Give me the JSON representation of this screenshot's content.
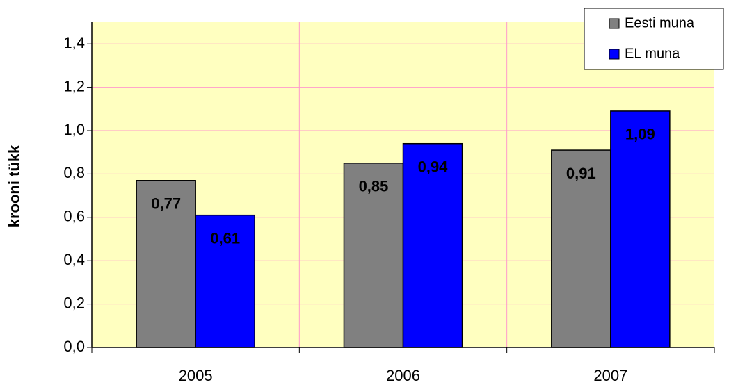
{
  "chart_data": {
    "type": "bar",
    "y_label": "krooni tükk",
    "categories": [
      "2005",
      "2006",
      "2007"
    ],
    "series": [
      {
        "name": "Eesti muna",
        "color": "#808080",
        "values": [
          0.77,
          0.85,
          0.91
        ],
        "value_labels": [
          "0,77",
          "0,85",
          "0,91"
        ]
      },
      {
        "name": "EL muna",
        "color": "#0000ff",
        "values": [
          0.61,
          0.94,
          1.09
        ],
        "value_labels": [
          "0,61",
          "0,94",
          "1,09"
        ]
      }
    ],
    "ylim": [
      0,
      1.5
    ],
    "yticks": [
      {
        "value": 0,
        "label": "0,0"
      },
      {
        "value": 0.2,
        "label": "0,2"
      },
      {
        "value": 0.4,
        "label": "0,4"
      },
      {
        "value": 0.6,
        "label": "0,6"
      },
      {
        "value": 0.8,
        "label": "0,8"
      },
      {
        "value": 1.0,
        "label": "1,0"
      },
      {
        "value": 1.2,
        "label": "1,2"
      },
      {
        "value": 1.4,
        "label": "1,4"
      }
    ],
    "grid": true,
    "legend": "top-right"
  }
}
